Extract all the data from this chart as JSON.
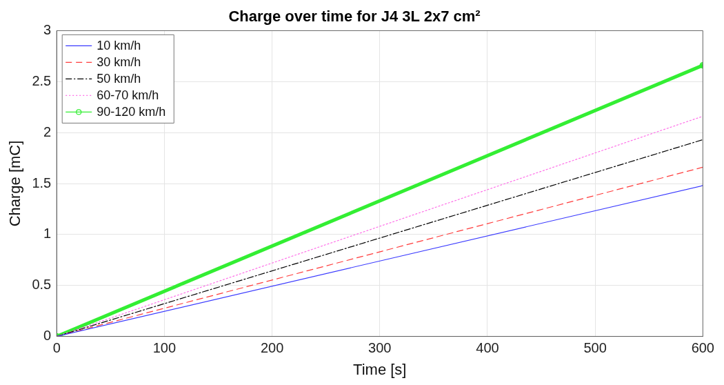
{
  "chart_data": {
    "type": "line",
    "title": "Charge over time for J4 3L 2x7 cm²",
    "xlabel": "Time [s]",
    "ylabel": "Charge [mC]",
    "x": [
      0,
      600
    ],
    "xlim": [
      0,
      600
    ],
    "xticks": [
      0,
      100,
      200,
      300,
      400,
      500,
      600
    ],
    "ylim": [
      0,
      3
    ],
    "yticks": [
      0,
      0.5,
      1,
      1.5,
      2,
      2.5,
      3
    ],
    "grid": true,
    "legend": "top left",
    "series": [
      {
        "name": "10 km/h",
        "color": "#3a3aff",
        "values": [
          0,
          1.48
        ],
        "line_style": "solid",
        "marker": "none"
      },
      {
        "name": "30 km/h",
        "color": "#ff3b3b",
        "values": [
          0,
          1.66
        ],
        "line_style": "dashed",
        "marker": "none"
      },
      {
        "name": "50 km/h",
        "color": "#000000",
        "values": [
          0,
          1.93
        ],
        "line_style": "dashdot",
        "marker": "none"
      },
      {
        "name": "60-70 km/h",
        "color": "#ff6ee8",
        "values": [
          0,
          2.16
        ],
        "line_style": "dotted",
        "marker": "none"
      },
      {
        "name": "90-120 km/h",
        "color": "#33ee33",
        "values": [
          0,
          2.66
        ],
        "line_style": "solid",
        "marker": "circle"
      }
    ]
  }
}
